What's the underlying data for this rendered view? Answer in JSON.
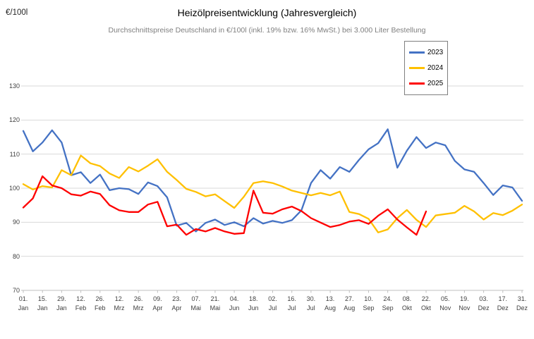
{
  "header": {
    "unit_label": "€/100l",
    "title": "Heizölpreisentwicklung (Jahresvergleich)",
    "subtitle": "Durchschnittspreise Deutschland in €/100l (inkl. 19% bzw. 16% MwSt.) bei 3.000 Liter Bestellung"
  },
  "legend": {
    "position": "top-right inset",
    "entries": [
      {
        "label": "2023",
        "color": "#4472C4"
      },
      {
        "label": "2024",
        "color": "#FFC000"
      },
      {
        "label": "2025",
        "color": "#FE0000"
      }
    ]
  },
  "chart_data": {
    "type": "line",
    "title": "Heizölpreisentwicklung (Jahresvergleich)",
    "subtitle": "Durchschnittspreise Deutschland in €/100l (inkl. 19% bzw. 16% MwSt.) bei 3.000 Liter Bestellung",
    "ylabel": "€/100l",
    "xlabel": "",
    "ylim": [
      70,
      130
    ],
    "y_ticks": [
      70,
      80,
      90,
      100,
      110,
      120,
      130
    ],
    "grid": "horizontal only",
    "x_tick_labels": [
      "01. Jan",
      "15. Jan",
      "29. Jan",
      "12. Feb",
      "26. Feb",
      "12. Mrz",
      "26. Mrz",
      "09. Apr",
      "23. Apr",
      "07. Mai",
      "21. Mai",
      "04. Jun",
      "18. Jun",
      "02. Jul",
      "16. Jul",
      "30. Jul",
      "13. Aug",
      "27. Aug",
      "10. Sep",
      "24. Sep",
      "08. Okt",
      "22. Okt",
      "05. Nov",
      "19. Nov",
      "03. Dez",
      "17. Dez",
      "31. Dez"
    ],
    "sampling": "weekly estimates, 53 points spanning 01.Jan - 31.Dez; 2025 series ends ~22.Okt",
    "series": [
      {
        "name": "2023",
        "color": "#4472C4",
        "values": [
          116.8,
          110.8,
          113.4,
          117.0,
          113.4,
          103.8,
          104.7,
          101.5,
          104.0,
          99.4,
          100.0,
          99.7,
          98.3,
          101.7,
          100.6,
          97.3,
          89.0,
          89.8,
          87.3,
          89.8,
          90.8,
          89.2,
          90.0,
          88.8,
          91.2,
          89.6,
          90.4,
          89.8,
          90.6,
          93.5,
          101.5,
          105.3,
          102.8,
          106.2,
          104.8,
          108.3,
          111.4,
          113.2,
          117.3,
          106.0,
          111.0,
          115.0,
          111.8,
          113.4,
          112.6,
          108.0,
          105.5,
          104.8,
          101.5,
          98.0,
          100.8,
          100.2,
          96.3
        ]
      },
      {
        "name": "2024",
        "color": "#FFC000",
        "values": [
          101.2,
          99.6,
          100.6,
          100.2,
          105.3,
          103.8,
          109.6,
          107.3,
          106.5,
          104.3,
          103.0,
          106.2,
          104.9,
          106.6,
          108.5,
          104.8,
          102.4,
          99.8,
          98.9,
          97.6,
          98.2,
          96.2,
          94.2,
          97.5,
          101.5,
          102.0,
          101.5,
          100.5,
          99.3,
          98.6,
          97.9,
          98.6,
          97.9,
          99.0,
          93.0,
          92.4,
          91.0,
          87.0,
          87.9,
          91.2,
          93.6,
          90.7,
          88.6,
          92.0,
          92.4,
          92.8,
          94.8,
          93.2,
          90.8,
          92.7,
          92.1,
          93.4,
          95.2
        ]
      },
      {
        "name": "2025",
        "color": "#FE0000",
        "values": [
          94.3,
          97.0,
          103.5,
          100.8,
          100.0,
          98.2,
          97.8,
          99.0,
          98.3,
          95.0,
          93.5,
          93.0,
          93.0,
          95.2,
          96.0,
          88.8,
          89.3,
          86.3,
          88.0,
          87.3,
          88.3,
          87.3,
          86.6,
          86.8,
          99.3,
          92.8,
          92.5,
          93.8,
          94.6,
          93.3,
          91.2,
          89.9,
          88.6,
          89.2,
          90.2,
          90.6,
          89.5,
          91.9,
          93.8,
          90.8,
          88.5,
          86.3,
          93.2,
          null,
          null,
          null,
          null,
          null,
          null,
          null,
          null,
          null,
          null
        ]
      }
    ]
  }
}
